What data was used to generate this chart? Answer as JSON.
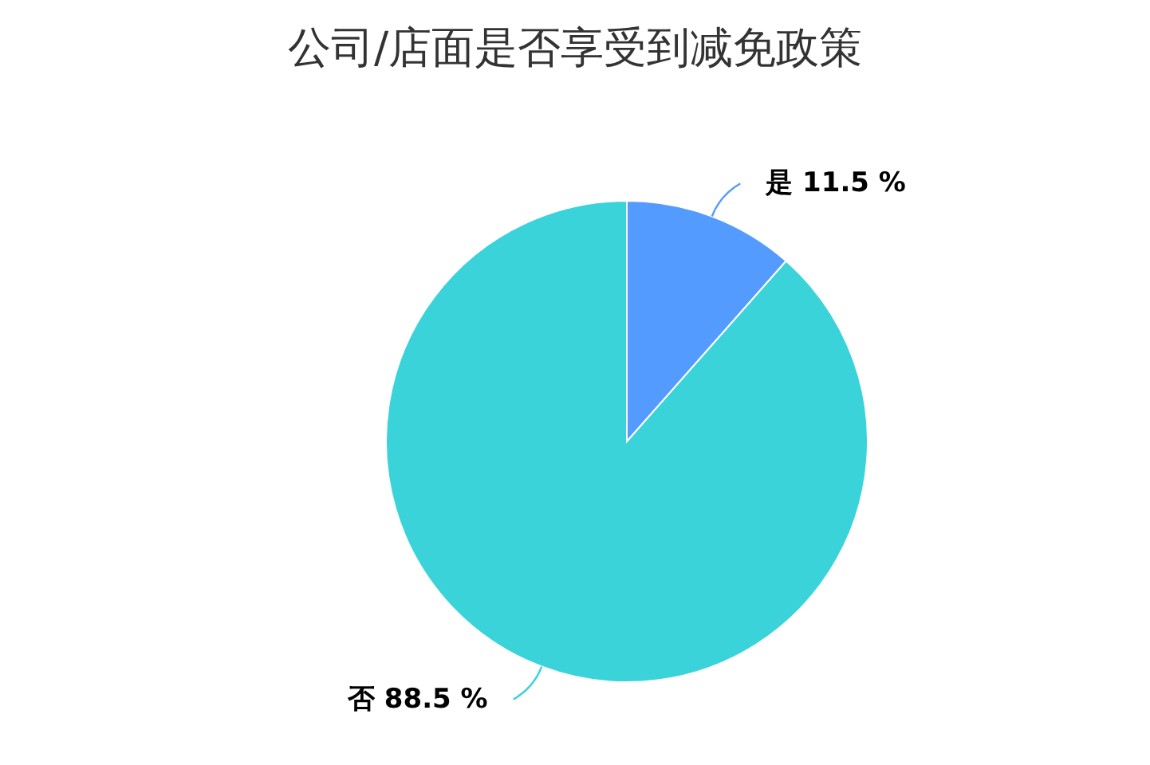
{
  "chart_data": {
    "type": "pie",
    "title": "公司/店面是否享受到减免政策",
    "categories": [
      "是",
      "否"
    ],
    "values": [
      11.5,
      88.5
    ],
    "colors": [
      "#539bff",
      "#3ad3da"
    ],
    "value_labels": [
      "11.5 %",
      "88.5 %"
    ]
  }
}
